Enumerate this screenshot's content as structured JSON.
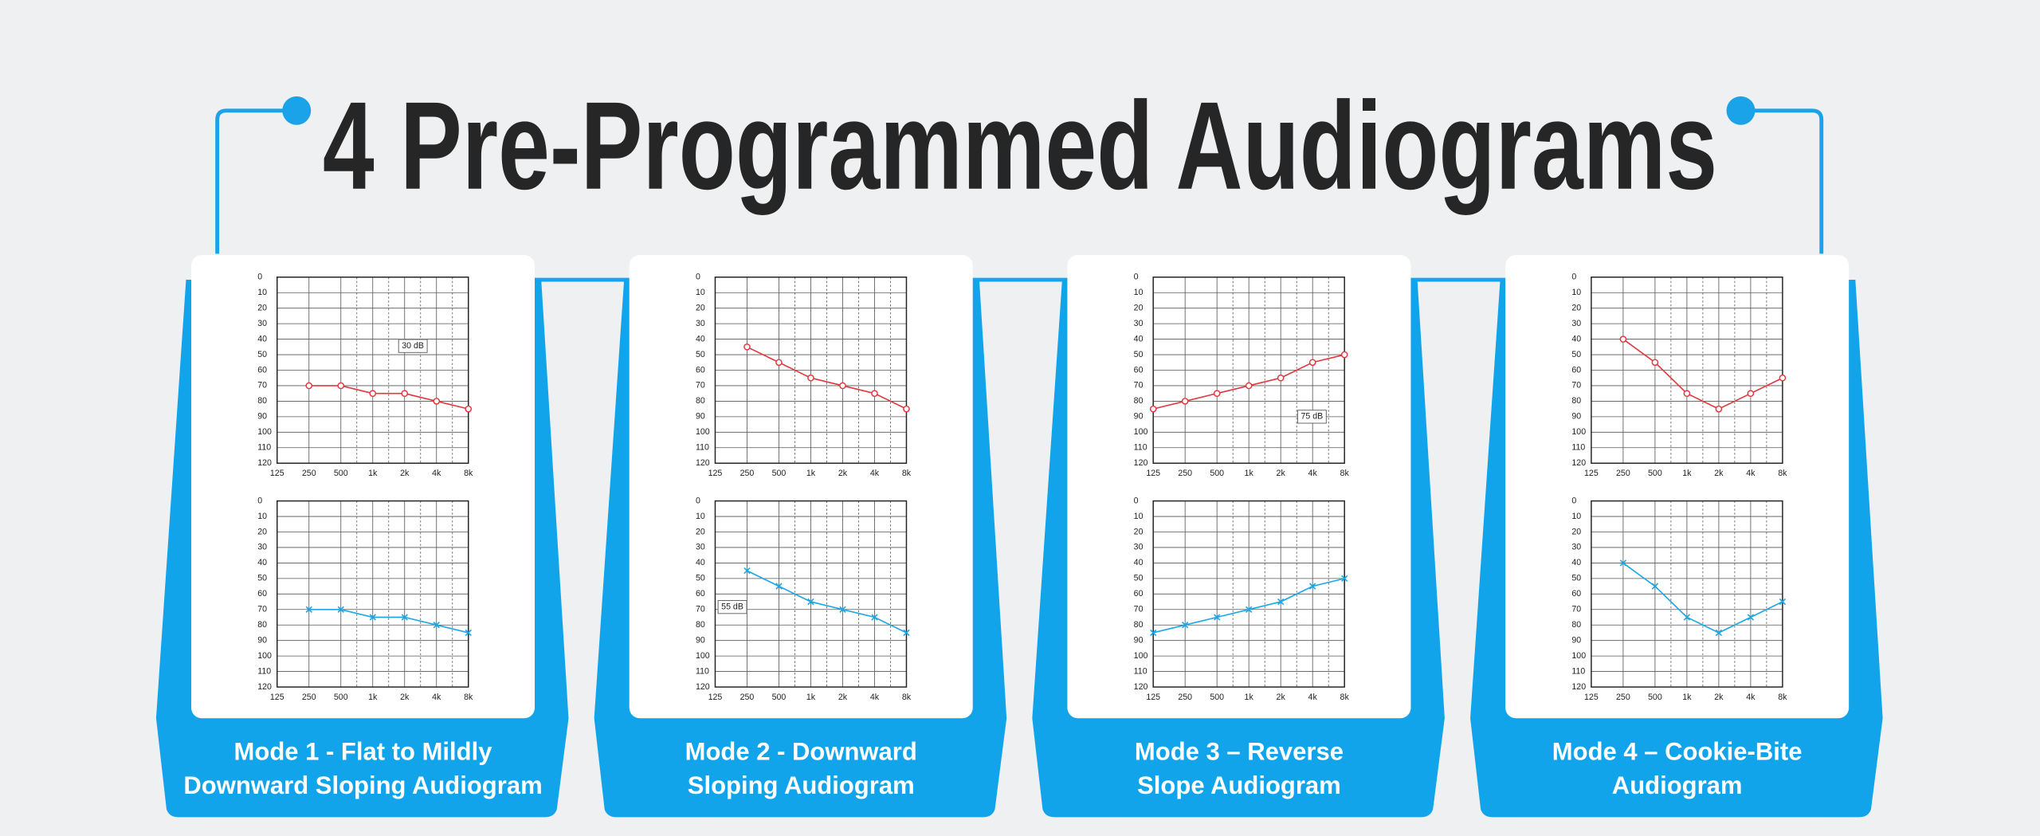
{
  "title": "4 Pre-Programmed Audiograms",
  "panels": [
    {
      "label_lines": [
        "Mode 1 - Flat to Mildly",
        "Downward Sloping Audiogram"
      ]
    },
    {
      "label_lines": [
        "Mode 2 - Downward",
        "Sloping Audiogram"
      ]
    },
    {
      "label_lines": [
        "Mode 3 – Reverse",
        "Slope Audiogram"
      ]
    },
    {
      "label_lines": [
        "Mode 4 – Cookie-Bite",
        "Audiogram"
      ]
    }
  ],
  "chart_data": [
    {
      "type": "line",
      "categories": [
        "125",
        "250",
        "500",
        "1k",
        "2k",
        "4k",
        "8k"
      ],
      "values": [
        null,
        70,
        70,
        75,
        75,
        80,
        85
      ],
      "color": "#e0393e",
      "marker": "circle",
      "annotation": "30 dB",
      "ylim": [
        0,
        120
      ],
      "yticks": [
        0,
        10,
        20,
        30,
        40,
        50,
        60,
        70,
        80,
        90,
        100,
        110,
        120
      ],
      "y_reversed": true,
      "grid": true
    },
    {
      "type": "line",
      "categories": [
        "125",
        "250",
        "500",
        "1k",
        "2k",
        "4k",
        "8k"
      ],
      "values": [
        null,
        70,
        70,
        75,
        75,
        80,
        85
      ],
      "color": "#1ea7e4",
      "marker": "x",
      "ylim": [
        0,
        120
      ],
      "yticks": [
        0,
        10,
        20,
        30,
        40,
        50,
        60,
        70,
        80,
        90,
        100,
        110,
        120
      ],
      "y_reversed": true,
      "grid": true
    },
    {
      "type": "line",
      "categories": [
        "125",
        "250",
        "500",
        "1k",
        "2k",
        "4k",
        "8k"
      ],
      "values": [
        null,
        45,
        55,
        65,
        70,
        75,
        85
      ],
      "color": "#e0393e",
      "marker": "circle",
      "ylim": [
        0,
        120
      ],
      "yticks": [
        0,
        10,
        20,
        30,
        40,
        50,
        60,
        70,
        80,
        90,
        100,
        110,
        120
      ],
      "y_reversed": true,
      "grid": true
    },
    {
      "type": "line",
      "categories": [
        "125",
        "250",
        "500",
        "1k",
        "2k",
        "4k",
        "8k"
      ],
      "values": [
        null,
        45,
        55,
        65,
        70,
        75,
        85
      ],
      "color": "#1ea7e4",
      "marker": "x",
      "annotation": "55 dB",
      "ylim": [
        0,
        120
      ],
      "yticks": [
        0,
        10,
        20,
        30,
        40,
        50,
        60,
        70,
        80,
        90,
        100,
        110,
        120
      ],
      "y_reversed": true,
      "grid": true
    },
    {
      "type": "line",
      "categories": [
        "125",
        "250",
        "500",
        "1k",
        "2k",
        "4k",
        "8k"
      ],
      "values": [
        85,
        80,
        75,
        70,
        65,
        55,
        50
      ],
      "color": "#e0393e",
      "marker": "circle",
      "annotation": "75 dB",
      "ylim": [
        0,
        120
      ],
      "yticks": [
        0,
        10,
        20,
        30,
        40,
        50,
        60,
        70,
        80,
        90,
        100,
        110,
        120
      ],
      "y_reversed": true,
      "grid": true
    },
    {
      "type": "line",
      "categories": [
        "125",
        "250",
        "500",
        "1k",
        "2k",
        "4k",
        "8k"
      ],
      "values": [
        85,
        80,
        75,
        70,
        65,
        55,
        50
      ],
      "color": "#1ea7e4",
      "marker": "x",
      "ylim": [
        0,
        120
      ],
      "yticks": [
        0,
        10,
        20,
        30,
        40,
        50,
        60,
        70,
        80,
        90,
        100,
        110,
        120
      ],
      "y_reversed": true,
      "grid": true
    },
    {
      "type": "line",
      "categories": [
        "125",
        "250",
        "500",
        "1k",
        "2k",
        "4k",
        "8k"
      ],
      "values": [
        null,
        40,
        55,
        75,
        85,
        75,
        65
      ],
      "color": "#e0393e",
      "marker": "circle",
      "ylim": [
        0,
        120
      ],
      "yticks": [
        0,
        10,
        20,
        30,
        40,
        50,
        60,
        70,
        80,
        90,
        100,
        110,
        120
      ],
      "y_reversed": true,
      "grid": true
    },
    {
      "type": "line",
      "categories": [
        "125",
        "250",
        "500",
        "1k",
        "2k",
        "4k",
        "8k"
      ],
      "values": [
        null,
        40,
        55,
        75,
        85,
        75,
        65
      ],
      "color": "#1ea7e4",
      "marker": "x",
      "ylim": [
        0,
        120
      ],
      "yticks": [
        0,
        10,
        20,
        30,
        40,
        50,
        60,
        70,
        80,
        90,
        100,
        110,
        120
      ],
      "y_reversed": true,
      "grid": true
    }
  ]
}
